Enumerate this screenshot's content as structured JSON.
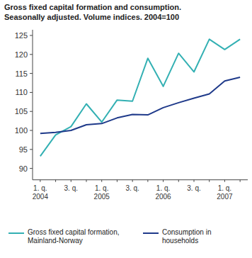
{
  "chart_data": {
    "type": "line",
    "title": "Gross fixed capital formation and consumption.",
    "subtitle": "Seasonally adjusted. Volume indices. 2004=100",
    "categories": [
      "1. q.\n2004",
      null,
      "3. q.",
      null,
      "1. q.\n2005",
      null,
      "3. q.",
      null,
      "1. q.\n2006",
      null,
      "3. q.",
      null,
      "1. q.\n2007",
      null
    ],
    "series": [
      {
        "name": "Gross fixed capital formation, Mainland-Norway",
        "color": "#33b0b3",
        "values": [
          93.2,
          98.8,
          101,
          107,
          102.2,
          108,
          107.7,
          119,
          111.6,
          120.3,
          115.4,
          124,
          121.3,
          124
        ]
      },
      {
        "name": "Consumption in households",
        "color": "#1f3a8a",
        "values": [
          99.2,
          99.5,
          100,
          101.5,
          101.8,
          103.3,
          104.2,
          104.1,
          106,
          107.3,
          108.5,
          109.6,
          113,
          114
        ]
      }
    ],
    "ylim": [
      87,
      125
    ],
    "yticks": [
      90,
      95,
      100,
      105,
      110,
      115,
      120,
      125
    ],
    "grid": false
  }
}
